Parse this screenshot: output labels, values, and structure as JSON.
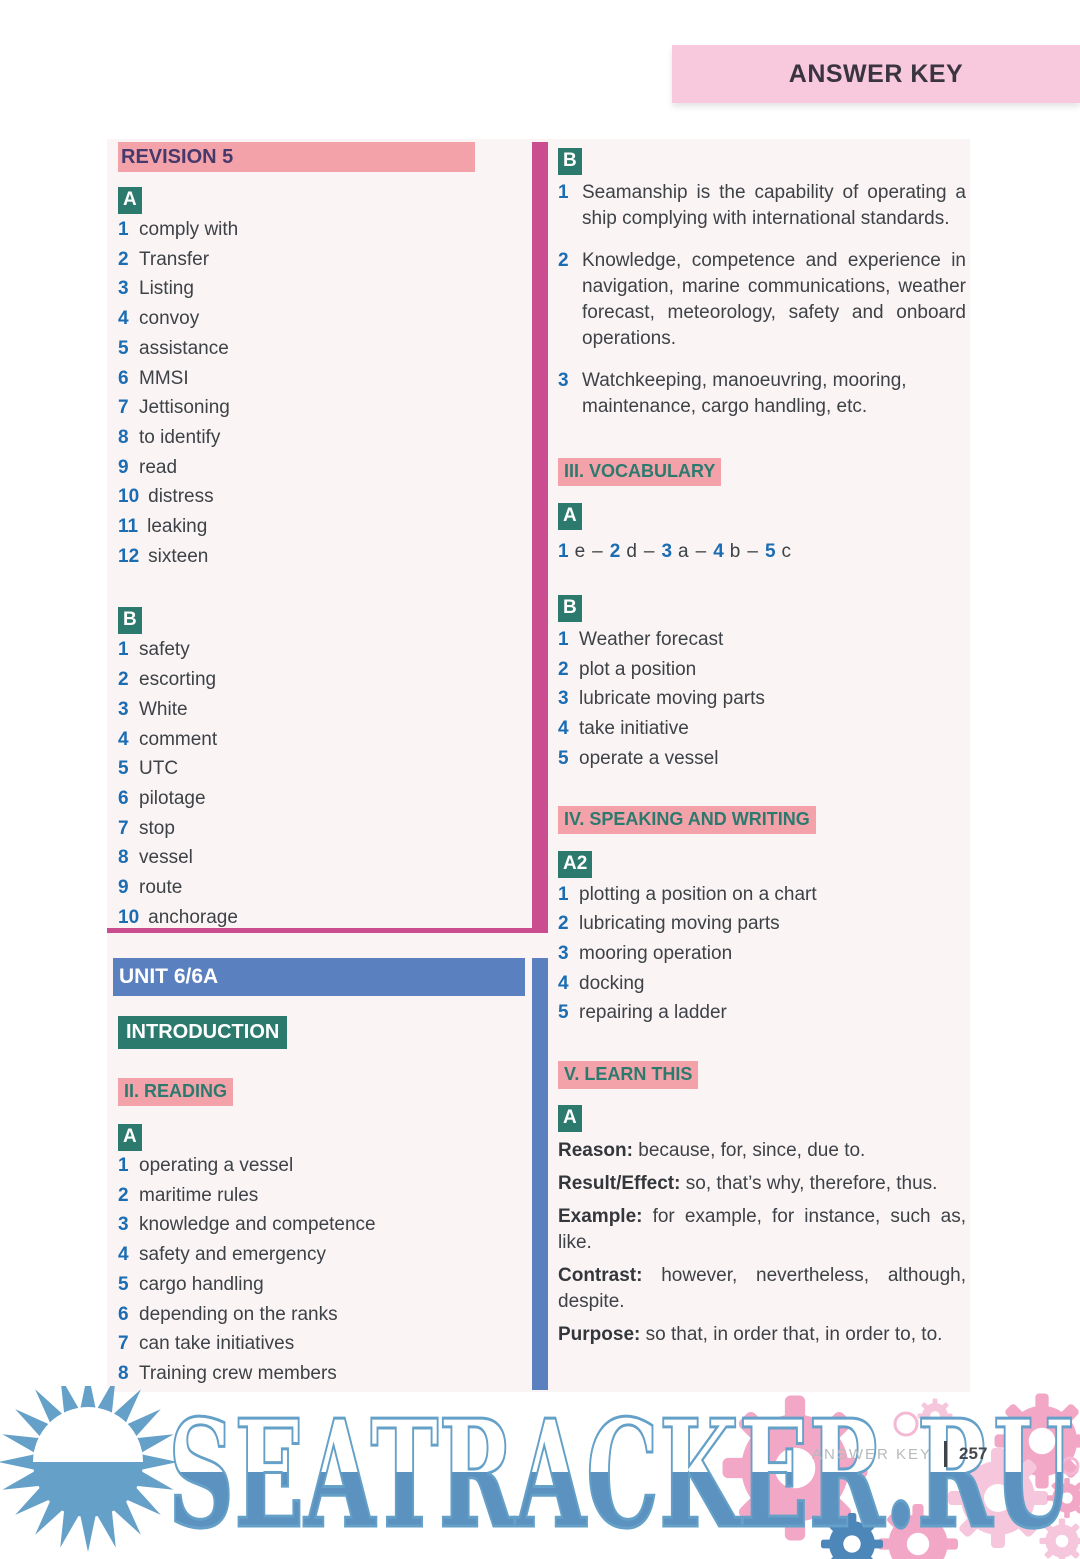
{
  "page": {
    "banner_title": "ANSWER KEY",
    "footer_label": "ANSWER KEY",
    "footer_page_number": "257",
    "watermark_text": "SEATRACKER.RU"
  },
  "colors": {
    "banner_pink": "#f8c8dc",
    "highlight_pink": "#f4a2aa",
    "teal": "#2c7a6e",
    "unit_blue": "#5b80bf",
    "divider_magenta": "#ca4d8f",
    "number_blue": "#1a6cb3",
    "body_text": "#3d4246",
    "revision_title_text": "#45386a",
    "watermark_blue": "#64a0c8",
    "gear_pink": "#f2a7c6"
  },
  "left_column": {
    "revision": {
      "title": "REVISION 5",
      "section_a": {
        "label": "A",
        "items": [
          "comply with",
          "Transfer",
          "Listing",
          "convoy",
          "assistance",
          "MMSI",
          "Jettisoning",
          "to identify",
          "read",
          "distress",
          "leaking",
          "sixteen"
        ]
      },
      "section_b": {
        "label": "B",
        "items": [
          "safety",
          "escorting",
          "White",
          "comment",
          "UTC",
          "pilotage",
          "stop",
          "vessel",
          "route",
          "anchorage"
        ]
      }
    },
    "unit": {
      "title": "UNIT 6/6A",
      "intro_title": "INTRODUCTION",
      "reading": {
        "title": "II. READING",
        "section_a": {
          "label": "A",
          "items": [
            "operating a vessel",
            "maritime rules",
            "knowledge and competence",
            "safety and emergency",
            "cargo handling",
            "depending on the ranks",
            "can take initiatives",
            "Training crew members"
          ]
        }
      }
    }
  },
  "right_column": {
    "section_b": {
      "label": "B",
      "items": [
        "Seamanship is the capability of operating a ship complying with international standards.",
        "Knowledge, competence and experience in navigation, marine communications, weather forecast, meteorology, safety and onboard operations.",
        "Watchkeeping, manoeuvring, mooring, maintenance, cargo handling, etc."
      ]
    },
    "vocabulary": {
      "title": "III. VOCABULARY",
      "section_a": {
        "label": "A",
        "separator": "–",
        "pairs": [
          {
            "num": "1",
            "letter": "e"
          },
          {
            "num": "2",
            "letter": "d"
          },
          {
            "num": "3",
            "letter": "a"
          },
          {
            "num": "4",
            "letter": "b"
          },
          {
            "num": "5",
            "letter": "c"
          }
        ]
      },
      "section_b": {
        "label": "B",
        "items": [
          "Weather forecast",
          "plot a position",
          "lubricate moving parts",
          "take initiative",
          "operate a vessel"
        ]
      }
    },
    "speaking": {
      "title": "IV. SPEAKING AND WRITING",
      "section_a2": {
        "label": "A2",
        "items": [
          "plotting a position on a chart",
          "lubricating moving parts",
          "mooring operation",
          "docking",
          "repairing a ladder"
        ]
      }
    },
    "learn": {
      "title": "V. LEARN THIS",
      "section_a": {
        "label": "A",
        "entries": [
          {
            "term": "Reason:",
            "text": "because, for, since, due to."
          },
          {
            "term": "Result/Effect:",
            "text": "so, that’s why, therefore, thus."
          },
          {
            "term": "Example:",
            "text": "for example, for instance, such as, like."
          },
          {
            "term": "Contrast:",
            "text": "however, nevertheless, although, despite."
          },
          {
            "term": "Purpose:",
            "text": "so that, in order that, in order to, to."
          }
        ]
      }
    }
  }
}
